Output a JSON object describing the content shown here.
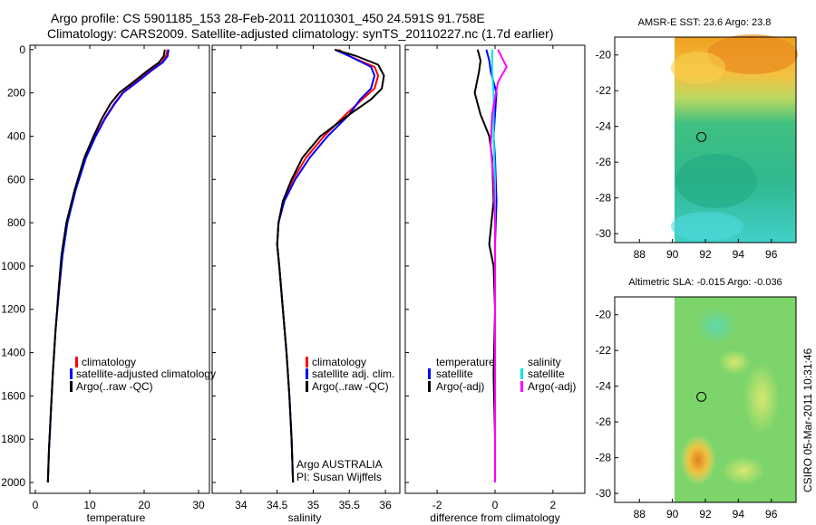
{
  "header": {
    "line1": "Argo profile: CS 5901185_153 28-Feb-2011 20110301_450 24.591S 91.758E",
    "line2": "Climatology: CARS2009. Satellite-adjusted climatology: synTS_20110227.nc (1.7d earlier)"
  },
  "side_label": "CSIRO 05-Mar-2011 10:31:46",
  "colors": {
    "climatology": "#ff0000",
    "satellite": "#0000ff",
    "argo": "#000000",
    "sal_satellite": "#00e6e6",
    "sal_argo": "#ff00ff"
  },
  "chart_data": [
    {
      "type": "line",
      "name": "temperature",
      "xlabel": "temperature",
      "ylabel": "",
      "xlim": [
        -1,
        32
      ],
      "ylim": [
        2050,
        -20
      ],
      "xticks": [
        "0",
        "10",
        "20",
        "30"
      ],
      "xtick_values": [
        0,
        10,
        20,
        30
      ],
      "yticks": [
        "0",
        "200",
        "400",
        "600",
        "800",
        "1000",
        "1200",
        "1400",
        "1600",
        "1800",
        "2000"
      ],
      "ytick_values": [
        0,
        200,
        400,
        600,
        800,
        1000,
        1200,
        1400,
        1600,
        1800,
        2000
      ],
      "series": [
        {
          "name": "climatology",
          "color_key": "climatology",
          "x": [
            24.3,
            24.0,
            23.2,
            21.0,
            18.5,
            16.0,
            14.5,
            12.7,
            11.0,
            9.2,
            7.3,
            5.8,
            4.9,
            4.4,
            3.7,
            3.2,
            2.8,
            2.5,
            2.3
          ],
          "y": [
            0,
            30,
            60,
            100,
            150,
            200,
            250,
            320,
            400,
            500,
            650,
            800,
            950,
            1100,
            1300,
            1500,
            1700,
            1850,
            2000
          ]
        },
        {
          "name": "satellite-adjusted climatology",
          "color_key": "satellite",
          "x": [
            24.5,
            24.3,
            23.4,
            21.2,
            18.7,
            16.1,
            14.6,
            12.8,
            11.1,
            9.3,
            7.4,
            5.9,
            5.0,
            4.4,
            3.7,
            3.2,
            2.8,
            2.5,
            2.3
          ],
          "y": [
            0,
            30,
            60,
            100,
            150,
            200,
            250,
            320,
            400,
            500,
            650,
            800,
            950,
            1100,
            1300,
            1500,
            1700,
            1850,
            2000
          ]
        },
        {
          "name": "Argo(..raw -QC)",
          "color_key": "argo",
          "x": [
            23.8,
            23.6,
            22.7,
            20.5,
            18.0,
            15.4,
            13.8,
            12.2,
            10.7,
            9.0,
            7.2,
            5.7,
            4.8,
            4.3,
            3.7,
            3.2,
            2.8,
            2.5,
            2.3
          ],
          "y": [
            0,
            30,
            60,
            100,
            150,
            200,
            250,
            320,
            400,
            500,
            650,
            800,
            950,
            1100,
            1300,
            1500,
            1700,
            1850,
            2000
          ]
        }
      ],
      "legend": [
        "climatology",
        "satellite-adjusted climatology",
        "Argo(..raw -QC)"
      ]
    },
    {
      "type": "line",
      "name": "salinity",
      "xlabel": "salinity",
      "xlim": [
        33.6,
        36.2
      ],
      "ylim": [
        2050,
        -20
      ],
      "xticks": [
        "34",
        "34.5",
        "35",
        "35.5",
        "36"
      ],
      "xtick_values": [
        34,
        34.5,
        35,
        35.5,
        36
      ],
      "series": [
        {
          "name": "climatology",
          "color_key": "climatology",
          "x": [
            35.35,
            35.5,
            35.85,
            35.9,
            35.85,
            35.68,
            35.45,
            35.15,
            34.9,
            34.72,
            34.58,
            34.52,
            34.5,
            34.53,
            34.58,
            34.63,
            34.67,
            34.7,
            34.72
          ],
          "y": [
            0,
            30,
            80,
            120,
            180,
            230,
            300,
            400,
            500,
            600,
            700,
            800,
            900,
            1000,
            1200,
            1400,
            1600,
            1800,
            2000
          ]
        },
        {
          "name": "satellite adj. clim.",
          "color_key": "satellite",
          "x": [
            35.3,
            35.5,
            35.8,
            35.85,
            35.8,
            35.65,
            35.5,
            35.2,
            34.95,
            34.75,
            34.6,
            34.52,
            34.5,
            34.53,
            34.58,
            34.63,
            34.67,
            34.7,
            34.72
          ],
          "y": [
            0,
            30,
            80,
            120,
            180,
            230,
            300,
            400,
            500,
            600,
            700,
            800,
            900,
            1000,
            1200,
            1400,
            1600,
            1800,
            2000
          ]
        },
        {
          "name": "Argo(..raw -QC)",
          "color_key": "argo",
          "x": [
            35.3,
            35.6,
            35.9,
            35.98,
            35.95,
            35.8,
            35.5,
            35.1,
            34.85,
            34.7,
            34.58,
            34.52,
            34.5,
            34.53,
            34.58,
            34.63,
            34.67,
            34.7,
            34.72
          ],
          "y": [
            0,
            30,
            70,
            120,
            180,
            230,
            300,
            400,
            500,
            600,
            700,
            800,
            900,
            1000,
            1200,
            1400,
            1600,
            1800,
            2000
          ]
        }
      ],
      "legend": [
        "climatology",
        "satellite adj. clim.",
        "Argo(..raw -QC)"
      ],
      "annotation": [
        "Argo AUSTRALIA",
        "PI: Susan Wijffels"
      ]
    },
    {
      "type": "line",
      "name": "difference",
      "xlabel": "difference from climatology",
      "xlim": [
        -3.1,
        3.1
      ],
      "ylim": [
        2050,
        -20
      ],
      "xticks": [
        "-2",
        "0",
        "2"
      ],
      "xtick_values": [
        -2,
        0,
        2
      ],
      "series": [
        {
          "name": "temperature satellite",
          "color_key": "satellite",
          "x": [
            -0.3,
            -0.2,
            -0.15,
            0.05,
            0.0,
            -0.05,
            0.0,
            0.05,
            0.0,
            0.0,
            0.0,
            0.0,
            0.0,
            0.0
          ],
          "y": [
            0,
            50,
            100,
            200,
            300,
            400,
            500,
            700,
            900,
            1100,
            1300,
            1500,
            1800,
            2000
          ]
        },
        {
          "name": "temperature Argo(-adj)",
          "color_key": "argo",
          "x": [
            -0.6,
            -0.5,
            -0.55,
            -0.7,
            -0.5,
            -0.2,
            -0.1,
            -0.05,
            -0.2,
            -0.05,
            0.0,
            -0.05,
            0.0,
            0.0
          ],
          "y": [
            0,
            50,
            100,
            200,
            300,
            400,
            500,
            700,
            900,
            1000,
            1200,
            1500,
            1800,
            2000
          ]
        },
        {
          "name": "salinity satellite",
          "color_key": "sal_satellite",
          "x": [
            -0.1,
            -0.1,
            -0.05,
            -0.05,
            0.0,
            0.0,
            0.0,
            0.0,
            0.0,
            0.0
          ],
          "y": [
            0,
            100,
            200,
            400,
            600,
            800,
            1100,
            1400,
            1700,
            2000
          ]
        },
        {
          "name": "salinity Argo(-adj)",
          "color_key": "sal_argo",
          "x": [
            0.1,
            0.4,
            0.1,
            -0.1,
            -0.15,
            -0.05,
            0.0,
            0.0,
            0.0,
            0.0
          ],
          "y": [
            0,
            80,
            150,
            300,
            450,
            600,
            800,
            1100,
            1500,
            2000
          ]
        }
      ],
      "legend_left_title": "temperature",
      "legend_right_title": "salinity",
      "legend_left": [
        "satellite",
        "Argo(-adj)"
      ],
      "legend_right": [
        "satellite",
        "Argo(-adj)"
      ]
    },
    {
      "type": "heatmap",
      "name": "sst_map",
      "title": "AMSR-E SST: 23.6 Argo: 23.8",
      "xticks": [
        "88",
        "90",
        "92",
        "94",
        "96"
      ],
      "yticks": [
        "-20",
        "-22",
        "-24",
        "-26",
        "-28",
        "-30"
      ],
      "xlim": [
        86.5,
        97.5
      ],
      "ylim": [
        -30.5,
        -19
      ],
      "marker": {
        "lon": 91.758,
        "lat": -24.591
      }
    },
    {
      "type": "heatmap",
      "name": "sla_map",
      "title": "Altimetric SLA: -0.015 Argo: -0.036",
      "xticks": [
        "88",
        "90",
        "92",
        "94",
        "96"
      ],
      "yticks": [
        "-20",
        "-22",
        "-24",
        "-26",
        "-28",
        "-30"
      ],
      "xlim": [
        86.5,
        97.5
      ],
      "ylim": [
        -30.5,
        -19
      ],
      "marker": {
        "lon": 91.758,
        "lat": -24.591
      }
    }
  ]
}
